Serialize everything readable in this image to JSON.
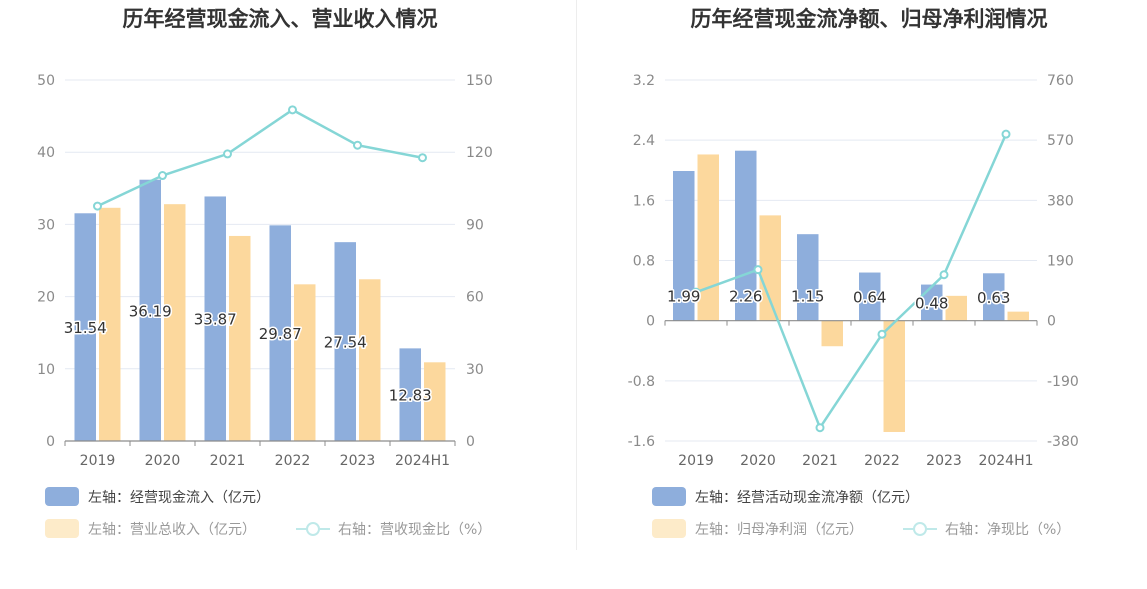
{
  "chart_data": [
    {
      "type": "bar",
      "title": "历年经营现金流入、营业收入情况",
      "categories": [
        "2019",
        "2020",
        "2021",
        "2022",
        "2023",
        "2024H1"
      ],
      "left_axis": {
        "ylim": [
          0,
          50
        ],
        "ticks": [
          "0",
          "10",
          "20",
          "30",
          "40",
          "50"
        ]
      },
      "right_axis": {
        "ylim": [
          0,
          150
        ],
        "ticks": [
          "0",
          "30",
          "60",
          "90",
          "120",
          "150"
        ]
      },
      "series": [
        {
          "name": "左轴：经营现金流入（亿元）",
          "kind": "bar",
          "axis": "left",
          "color": "#8eaedc",
          "values": [
            31.54,
            36.19,
            33.87,
            29.87,
            27.54,
            12.83
          ],
          "labels": [
            "31.54",
            "36.19",
            "33.87",
            "29.87",
            "27.54",
            "12.83"
          ]
        },
        {
          "name": "左轴：营业总收入（亿元）",
          "kind": "bar",
          "axis": "left",
          "color": "#fcd89d",
          "values": [
            32.3,
            32.8,
            28.4,
            21.7,
            22.4,
            10.9
          ]
        },
        {
          "name": "右轴：营收现金比（%）",
          "kind": "line",
          "axis": "right",
          "color": "#85d6d6",
          "values": [
            97.6,
            110.3,
            119.3,
            137.6,
            122.9,
            117.7
          ]
        }
      ],
      "legend_position": "bottom-left",
      "grid": true
    },
    {
      "type": "bar",
      "title": "历年经营现金流净额、归母净利润情况",
      "categories": [
        "2019",
        "2020",
        "2021",
        "2022",
        "2023",
        "2024H1"
      ],
      "left_axis": {
        "ylim": [
          -1.6,
          3.2
        ],
        "ticks": [
          "-1.6",
          "-0.8",
          "0",
          "0.8",
          "1.6",
          "2.4",
          "3.2"
        ]
      },
      "right_axis": {
        "ylim": [
          -380,
          760
        ],
        "ticks": [
          "-380",
          "-190",
          "0",
          "190",
          "380",
          "570",
          "760"
        ]
      },
      "series": [
        {
          "name": "左轴：经营活动现金流净额（亿元）",
          "kind": "bar",
          "axis": "left",
          "color": "#8eaedc",
          "values": [
            1.99,
            2.26,
            1.15,
            0.64,
            0.48,
            0.63
          ],
          "labels": [
            "1.99",
            "2.26",
            "1.15",
            "0.64",
            "0.48",
            "0.63"
          ]
        },
        {
          "name": "左轴：归母净利润（亿元）",
          "kind": "bar",
          "axis": "left",
          "color": "#fcd89d",
          "values": [
            2.21,
            1.4,
            -0.34,
            -1.48,
            0.33,
            0.12
          ]
        },
        {
          "name": "右轴：净现比（%）",
          "kind": "line",
          "axis": "right",
          "color": "#85d6d6",
          "values": [
            90,
            161,
            -338,
            -43,
            145,
            589
          ]
        }
      ],
      "legend_position": "bottom-left",
      "grid": true
    }
  ]
}
